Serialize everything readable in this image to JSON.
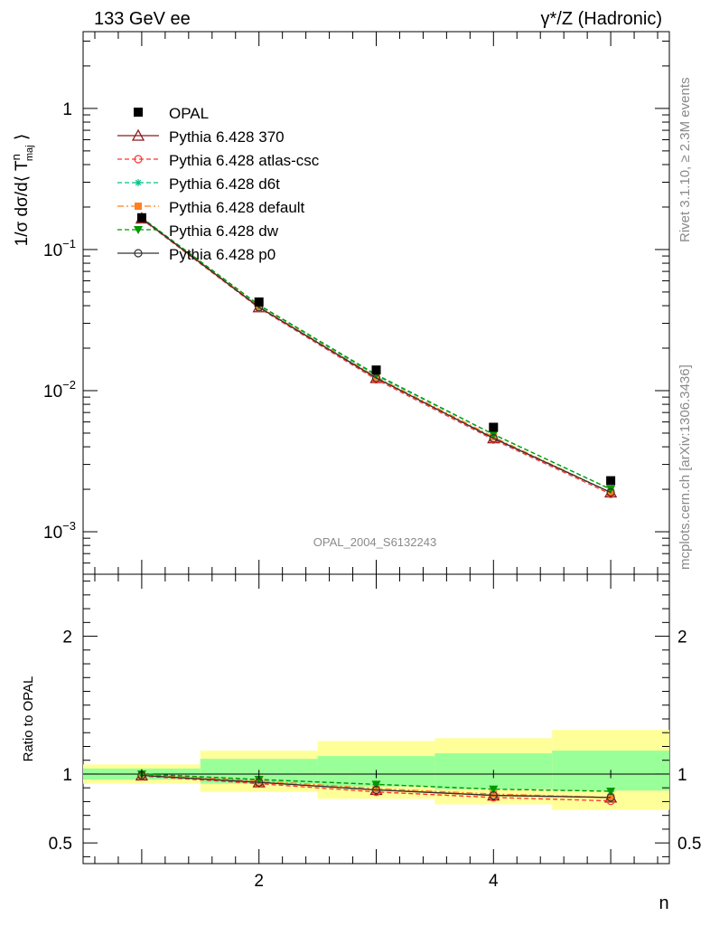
{
  "header": {
    "left": "133 GeV ee",
    "right": "γ*/Z (Hadronic)"
  },
  "side_labels": {
    "rivet": "Rivet 3.1.10, ≥ 2.3M events",
    "mcplots": "mcplots.cern.ch [arXiv:1306.3436]"
  },
  "analysis_id": "OPAL_2004_S6132243",
  "colors": {
    "opal": "#000000",
    "p370": "#8b1a1a",
    "atlas": "#ff3333",
    "d6t": "#00c28c",
    "default": "#ff8020",
    "dw": "#009900",
    "p0": "#333333",
    "band_outer": "#ffff99",
    "band_inner": "#99ff99"
  },
  "chart_data": [
    {
      "panel": "main",
      "type": "line",
      "yscale": "log",
      "ylabel": "1/σ dσ/d⟨ T^n_maj ⟩",
      "xlim": [
        0.5,
        5.5
      ],
      "ylim": [
        0.0005,
        3.5
      ],
      "yticks": [
        {
          "value": 1,
          "label": "1"
        },
        {
          "value": 0.1,
          "label": "10",
          "exp": "−1"
        },
        {
          "value": 0.01,
          "label": "10",
          "exp": "−2"
        },
        {
          "value": 0.001,
          "label": "10",
          "exp": "−3"
        }
      ],
      "x": [
        1,
        2,
        3,
        4,
        5
      ],
      "data": {
        "name": "OPAL",
        "values": [
          0.168,
          0.0425,
          0.014,
          0.0055,
          0.0023
        ],
        "errors": [
          0.0055,
          0.0012,
          0.0005,
          0.00025,
          0.00015
        ]
      },
      "series": [
        {
          "name": "Pythia 6.428 370",
          "values": [
            0.166,
            0.039,
            0.0123,
            0.0046,
            0.0019
          ]
        },
        {
          "name": "Pythia 6.428 atlas-csc",
          "values": [
            0.164,
            0.0385,
            0.012,
            0.0045,
            0.00185
          ]
        },
        {
          "name": "Pythia 6.428 d6t",
          "values": [
            0.168,
            0.0402,
            0.0128,
            0.0049,
            0.002
          ]
        },
        {
          "name": "Pythia 6.428 default",
          "values": [
            0.167,
            0.0395,
            0.0125,
            0.0047,
            0.0019
          ]
        },
        {
          "name": "Pythia 6.428 dw",
          "values": [
            0.168,
            0.0405,
            0.013,
            0.0049,
            0.002
          ]
        },
        {
          "name": "Pythia 6.428 p0",
          "values": [
            0.166,
            0.039,
            0.0123,
            0.0046,
            0.0019
          ]
        }
      ]
    },
    {
      "panel": "ratio",
      "type": "line",
      "ylabel": "Ratio to OPAL",
      "xlabel": "n",
      "xlim": [
        0.5,
        5.5
      ],
      "ylim": [
        0.35,
        2.45
      ],
      "xticks": [
        2,
        4
      ],
      "yticks": [
        {
          "value": 0.5,
          "label": "0.5"
        },
        {
          "value": 1,
          "label": "1"
        },
        {
          "value": 2,
          "label": "2"
        }
      ],
      "x": [
        1,
        2,
        3,
        4,
        5
      ],
      "bins": [
        [
          0.5,
          1.5
        ],
        [
          1.5,
          2.5
        ],
        [
          2.5,
          3.5
        ],
        [
          3.5,
          4.5
        ],
        [
          4.5,
          5.5
        ]
      ],
      "band_inner": [
        [
          0.96,
          1.04
        ],
        [
          0.93,
          1.11
        ],
        [
          0.91,
          1.13
        ],
        [
          0.89,
          1.15
        ],
        [
          0.88,
          1.17
        ]
      ],
      "band_outer": [
        [
          0.93,
          1.07
        ],
        [
          0.87,
          1.17
        ],
        [
          0.82,
          1.24
        ],
        [
          0.78,
          1.26
        ],
        [
          0.74,
          1.32
        ]
      ],
      "series": [
        {
          "name": "Pythia 6.428 370",
          "values": [
            0.99,
            0.94,
            0.885,
            0.845,
            0.83
          ]
        },
        {
          "name": "Pythia 6.428 atlas-csc",
          "values": [
            0.985,
            0.93,
            0.87,
            0.83,
            0.805
          ]
        },
        {
          "name": "Pythia 6.428 d6t",
          "values": [
            1.0,
            0.96,
            0.925,
            0.89,
            0.875
          ]
        },
        {
          "name": "Pythia 6.428 default",
          "values": [
            0.995,
            0.95,
            0.895,
            0.855,
            0.83
          ]
        },
        {
          "name": "Pythia 6.428 dw",
          "values": [
            1.0,
            0.96,
            0.925,
            0.89,
            0.875
          ]
        },
        {
          "name": "Pythia 6.428 p0",
          "values": [
            0.99,
            0.94,
            0.885,
            0.845,
            0.83
          ]
        }
      ]
    }
  ]
}
